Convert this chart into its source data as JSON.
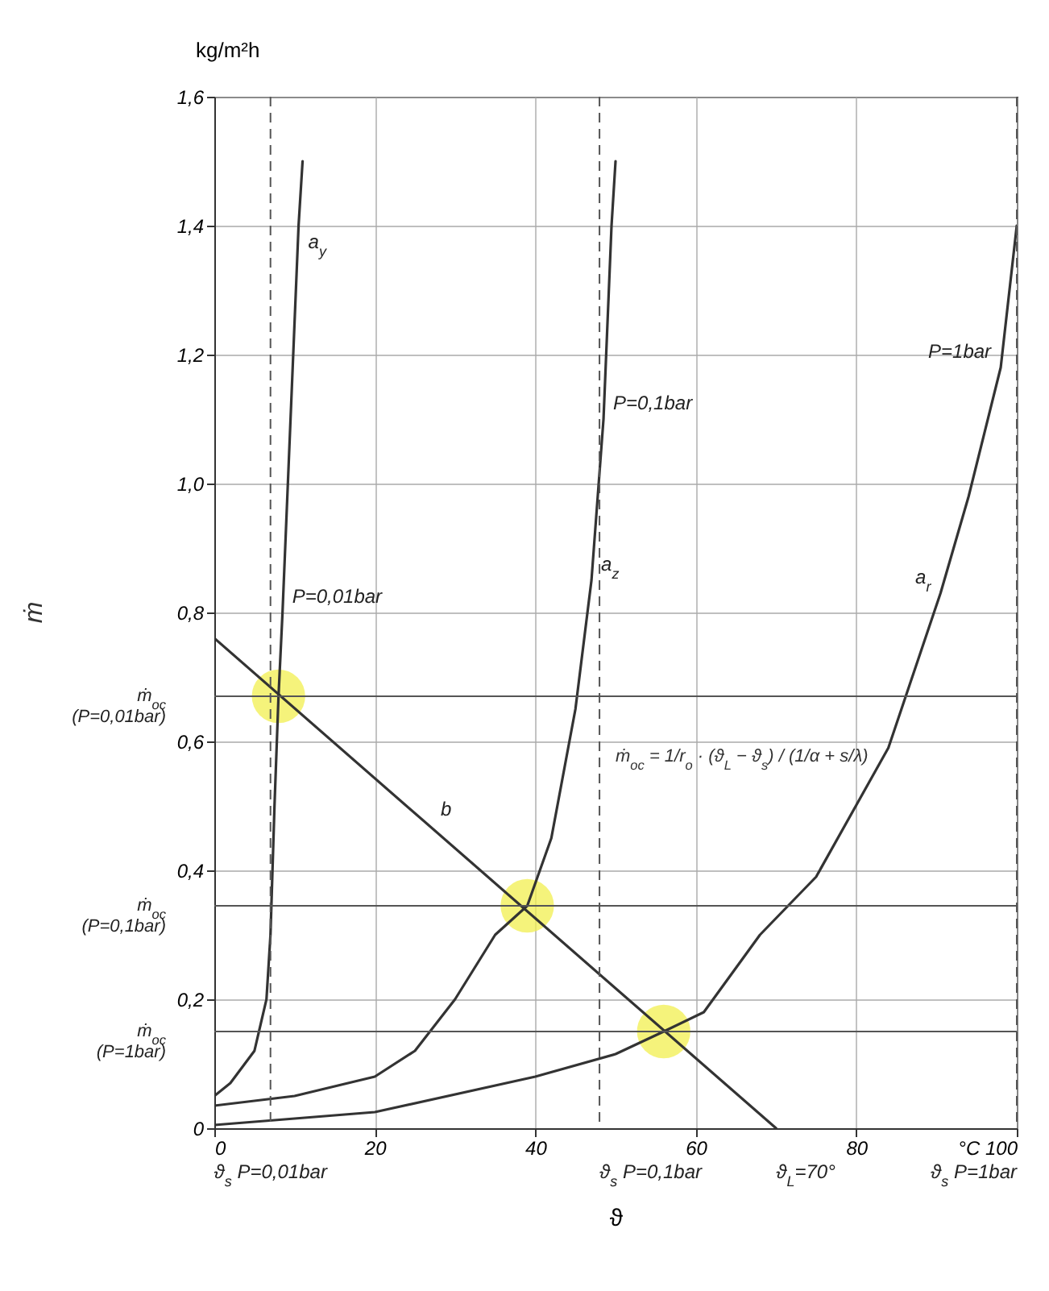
{
  "chart_data": {
    "type": "line",
    "xlabel": "ϑ",
    "ylabel": "kg/m²h",
    "xlim": [
      0,
      100
    ],
    "ylim": [
      0,
      1.6
    ],
    "xticks": [
      0,
      20,
      40,
      60,
      80,
      {
        "value": 100,
        "label": "°C 100"
      }
    ],
    "yticks": [
      {
        "value": 0,
        "label": "0"
      },
      {
        "value": 0.2,
        "label": "0,2"
      },
      {
        "value": 0.4,
        "label": "0,4"
      },
      {
        "value": 0.6,
        "label": "0,6"
      },
      {
        "value": 0.8,
        "label": "0,8"
      },
      {
        "value": 1,
        "label": "1,0"
      },
      {
        "value": 1.2,
        "label": "1,2"
      },
      {
        "value": 1.4,
        "label": "1,4"
      },
      {
        "value": 1.6,
        "label": "1,6"
      }
    ],
    "grid": true,
    "line_style": "solid",
    "series": [
      {
        "type": "scatter",
        "marker": "circle",
        "color": "#f2ef4f",
        "x": [
          8,
          39,
          56
        ],
        "values": [
          0.67,
          0.345,
          0.15
        ]
      },
      {
        "color": "#333333",
        "x": [
          0,
          2,
          5,
          6.5,
          7,
          7.5,
          8,
          8.5,
          9.5,
          10.5,
          11
        ],
        "values": [
          0.05,
          0.07,
          0.12,
          0.2,
          0.3,
          0.5,
          0.67,
          0.8,
          1.1,
          1.4,
          1.5
        ]
      },
      {
        "color": "#333333",
        "x": [
          0,
          10,
          20,
          25,
          30,
          35,
          39,
          42,
          45,
          47,
          48.5,
          49.5,
          50
        ],
        "values": [
          0.035,
          0.05,
          0.08,
          0.12,
          0.2,
          0.3,
          0.345,
          0.45,
          0.65,
          0.85,
          1.1,
          1.4,
          1.5
        ]
      },
      {
        "color": "#333333",
        "x": [
          0,
          20,
          40,
          50,
          56,
          61,
          68,
          75,
          84,
          90.5,
          94,
          98,
          100
        ],
        "values": [
          0.005,
          0.025,
          0.08,
          0.115,
          0.15,
          0.18,
          0.3,
          0.39,
          0.59,
          0.83,
          0.98,
          1.18,
          1.4
        ]
      },
      {
        "color": "#333333",
        "x": [
          0,
          70
        ],
        "values": [
          0.76,
          0
        ]
      }
    ],
    "ref_lines": [
      {
        "axis": "x",
        "value": 7,
        "line_style": "dashed"
      },
      {
        "axis": "x",
        "value": 48,
        "line_style": "dashed"
      },
      {
        "axis": "x",
        "value": 100,
        "line_style": "dashed"
      },
      {
        "axis": "y",
        "value": 0.67,
        "line_style": "solid"
      },
      {
        "axis": "y",
        "value": 0.345,
        "line_style": "solid"
      },
      {
        "axis": "y",
        "value": 0.15,
        "line_style": "solid"
      }
    ],
    "annotations": [
      "ṁ",
      {
        "text": "ϑ$_{s}$ P=0,01bar",
        "x": 7,
        "y": 0
      },
      {
        "text": "ϑ$_{s}$ P=0,1bar",
        "x": 48,
        "y": 0
      },
      {
        "text": "ϑ$_{s}$ P=1bar",
        "x": 100,
        "y": 0
      },
      {
        "text": "ṁ$_{oc}$ (P=0,01bar)",
        "x": 0,
        "y": 0.67
      },
      {
        "text": "ṁ$_{oc}$ (P=0,1bar)",
        "x": 0,
        "y": 0.345
      },
      {
        "text": "ṁ$_{oc}$ (P=1bar)",
        "x": 0,
        "y": 0.15
      },
      {
        "text": "a$_{y}$",
        "x": 10.5,
        "y": 1.35
      },
      {
        "text": "P=0,01bar",
        "x": 8.5,
        "y": 0.8
      },
      {
        "text": "P=0,1bar",
        "x": 48.5,
        "y": 1.1
      },
      {
        "text": "a$_{z}$",
        "x": 47,
        "y": 0.85
      },
      {
        "text": "P=1bar",
        "x": 98,
        "y": 1.18
      },
      {
        "text": "a$_{r}$",
        "x": 90.5,
        "y": 0.83
      },
      {
        "text": "b",
        "x": 27,
        "y": 0.47
      },
      "ṁ$_{oc}$ = 1/r$_{o}$ · (ϑ$_{L}$ − ϑ$_{s}$) / (1/α + s/λ)",
      {
        "text": "ϑ$_{L}$=70°",
        "x": 70,
        "y": 0
      }
    ]
  }
}
